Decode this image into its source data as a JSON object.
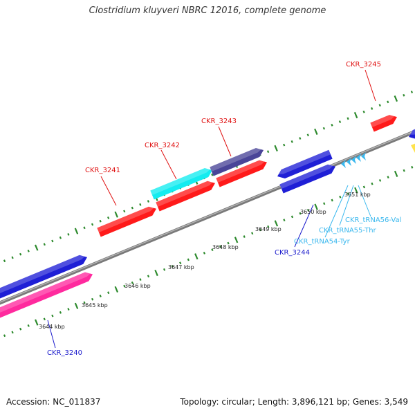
{
  "title": "Clostridium kluyveri NBRC 12016, complete genome",
  "footer": {
    "accession": "Accession: NC_011837",
    "summary": "Topology: circular; Length: 3,896,121 bp; Genes: 3,549"
  },
  "colors": {
    "red": "#ff1a1a",
    "blue": "#1f1fd6",
    "cyan": "#14ecf0",
    "slate": "#4a4598",
    "magenta": "#ff2a9e",
    "yellow": "#ffe34d",
    "trna": "#3ab8ee",
    "tick": "#2d8a2d",
    "backbone": "#8c8c8c"
  },
  "kbp_labels": [
    "3644 kbp",
    "3645 kbp",
    "3646 kbp",
    "3647 kbp",
    "3648 kbp",
    "3649 kbp",
    "3650 kbp",
    "3651 kbp"
  ],
  "genes": [
    {
      "name": "CKR_3240",
      "color": "blue"
    },
    {
      "name": "CKR_3241",
      "color": "red"
    },
    {
      "name": "CKR_3242",
      "color": "red"
    },
    {
      "name": "CKR_3243",
      "color": "red"
    },
    {
      "name": "CKR_3244",
      "color": "blue"
    },
    {
      "name": "CKR_3245",
      "color": "red"
    },
    {
      "name": "CKR_tRNA54-Tyr",
      "color": "trna"
    },
    {
      "name": "CKR_tRNA55-Thr",
      "color": "trna"
    },
    {
      "name": "CKR_tRNA56-Val",
      "color": "trna"
    }
  ]
}
